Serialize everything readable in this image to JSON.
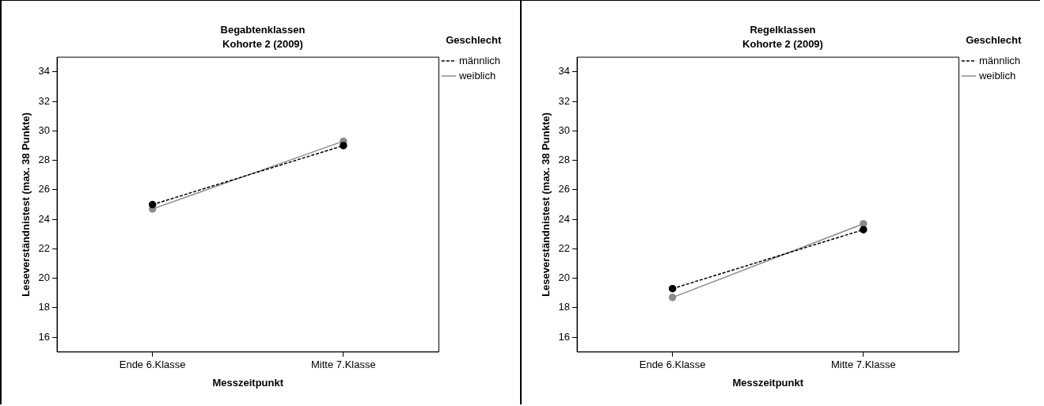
{
  "chart_data": [
    {
      "type": "line",
      "title": "Begabtenklassen",
      "subtitle": "Kohorte 2 (2009)",
      "xlabel": "Messzeitpunkt",
      "ylabel": "Leseverständnistest (max. 38 Punkte)",
      "legend_title": "Geschlecht",
      "categories": [
        "Ende 6.Klasse",
        "Mitte 7.Klasse"
      ],
      "series": [
        {
          "name": "männlich",
          "color": "#000000",
          "line_style": "dashed",
          "values": [
            25.0,
            29.0
          ]
        },
        {
          "name": "weiblich",
          "color": "#8c8c8c",
          "line_style": "solid",
          "values": [
            24.7,
            29.3
          ]
        }
      ],
      "ylim": [
        15,
        35
      ],
      "yticks": [
        16,
        18,
        20,
        22,
        24,
        26,
        28,
        30,
        32,
        34
      ],
      "grid": false,
      "legend": "right",
      "marker": "circle"
    },
    {
      "type": "line",
      "title": "Regelklassen",
      "subtitle": "Kohorte 2 (2009)",
      "xlabel": "Messzeitpunkt",
      "ylabel": "Leseverständnistest (max. 38 Punkte)",
      "legend_title": "Geschlecht",
      "categories": [
        "Ende 6.Klasse",
        "Mitte 7.Klasse"
      ],
      "series": [
        {
          "name": "männlich",
          "color": "#000000",
          "line_style": "dashed",
          "values": [
            19.3,
            23.3
          ]
        },
        {
          "name": "weiblich",
          "color": "#8c8c8c",
          "line_style": "solid",
          "values": [
            18.7,
            23.7
          ]
        }
      ],
      "ylim": [
        15,
        35
      ],
      "yticks": [
        16,
        18,
        20,
        22,
        24,
        26,
        28,
        30,
        32,
        34
      ],
      "grid": false,
      "legend": "right",
      "marker": "circle"
    }
  ]
}
